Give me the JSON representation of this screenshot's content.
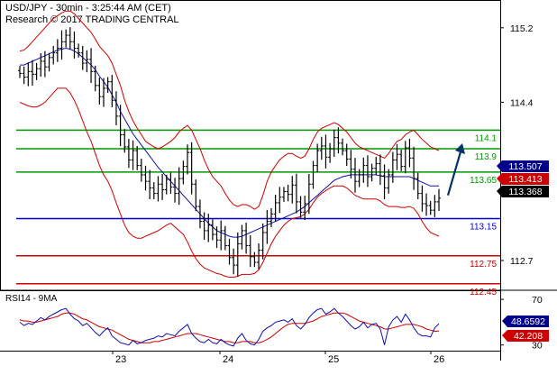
{
  "header": {
    "title": "USD/JPY - 30min - 3:25:44 AM (CET)",
    "credit": "Research © 2017 TRADING CENTRAL"
  },
  "chart_data": [
    {
      "type": "candlestick",
      "title": "USD/JPY - 30min - 3:25:44 AM (CET)",
      "ylim": [
        112.38,
        115.44
      ],
      "x_ticks": [
        "23",
        "24",
        "25",
        "26"
      ],
      "y_ticks": [
        115.2,
        114.4,
        112.7
      ],
      "grid": false,
      "price_badges": [
        {
          "label": "113.507",
          "value": 113.507,
          "color": "#00008b"
        },
        {
          "label": "113.413",
          "value": 113.413,
          "color": "#cc0000"
        },
        {
          "label": "113.368",
          "value": 113.368,
          "color": "#000000"
        }
      ],
      "levels": [
        {
          "label": "114.1",
          "value": 114.1,
          "color": "#009900"
        },
        {
          "label": "113.9",
          "value": 113.9,
          "color": "#009900"
        },
        {
          "label": "113.65",
          "value": 113.65,
          "color": "#009900"
        },
        {
          "label": "113.15",
          "value": 113.15,
          "color": "#0000cc"
        },
        {
          "label": "112.75",
          "value": 112.75,
          "color": "#cc0000"
        },
        {
          "label": "112.45",
          "value": 112.45,
          "color": "#cc0000"
        }
      ],
      "close": [
        114.71,
        114.67,
        114.73,
        114.7,
        114.76,
        114.84,
        114.78,
        114.88,
        114.93,
        114.98,
        115.05,
        115.12,
        115.05,
        114.98,
        114.93,
        114.82,
        114.86,
        114.73,
        114.58,
        114.46,
        114.55,
        114.62,
        114.42,
        114.25,
        114.05,
        113.92,
        113.78,
        113.88,
        113.72,
        113.62,
        113.55,
        113.48,
        113.42,
        113.52,
        113.46,
        113.57,
        113.49,
        113.42,
        113.58,
        113.71,
        113.86,
        113.52,
        113.28,
        113.12,
        113.02,
        113.08,
        112.98,
        112.92,
        113.02,
        112.86,
        112.73,
        112.65,
        112.88,
        113.02,
        112.86,
        112.74,
        112.68,
        112.81,
        113.0,
        113.12,
        113.2,
        113.32,
        113.38,
        113.44,
        113.41,
        113.51,
        113.33,
        113.22,
        113.31,
        113.52,
        113.72,
        113.88,
        113.93,
        113.81,
        113.9,
        114.02,
        113.96,
        113.88,
        113.79,
        113.68,
        113.55,
        113.62,
        113.72,
        113.6,
        113.69,
        113.74,
        113.61,
        113.48,
        113.62,
        113.78,
        113.84,
        113.71,
        113.91,
        113.8,
        113.58,
        113.42,
        113.31,
        113.29,
        113.24,
        113.33,
        113.37
      ],
      "bollinger_upper": [
        114.95,
        114.96,
        115.0,
        115.05,
        115.1,
        115.15,
        115.2,
        115.25,
        115.3,
        115.33,
        115.36,
        115.38,
        115.38,
        115.35,
        115.3,
        115.25,
        115.2,
        115.15,
        115.08,
        115.0,
        114.95,
        114.9,
        114.82,
        114.7,
        114.58,
        114.42,
        114.3,
        114.2,
        114.12,
        114.05,
        113.98,
        113.95,
        113.92,
        113.9,
        113.92,
        113.95,
        113.98,
        114.02,
        114.08,
        114.12,
        114.15,
        114.1,
        114.0,
        113.9,
        113.78,
        113.68,
        113.6,
        113.55,
        113.5,
        113.42,
        113.35,
        113.3,
        113.28,
        113.3,
        113.3,
        113.28,
        113.25,
        113.28,
        113.4,
        113.55,
        113.65,
        113.72,
        113.78,
        113.82,
        113.85,
        113.85,
        113.82,
        113.8,
        113.82,
        113.9,
        114.0,
        114.08,
        114.12,
        114.14,
        114.16,
        114.18,
        114.16,
        114.12,
        114.08,
        114.02,
        113.96,
        113.92,
        113.9,
        113.88,
        113.86,
        113.84,
        113.82,
        113.8,
        113.85,
        113.92,
        113.98,
        114.0,
        114.05,
        114.08,
        114.1,
        114.05,
        114.0,
        113.96,
        113.92,
        113.9,
        113.88
      ],
      "bollinger_lower": [
        114.4,
        114.38,
        114.36,
        114.35,
        114.35,
        114.37,
        114.4,
        114.45,
        114.5,
        114.55,
        114.55,
        114.55,
        114.5,
        114.42,
        114.32,
        114.2,
        114.08,
        113.98,
        113.85,
        113.72,
        113.62,
        113.55,
        113.45,
        113.32,
        113.2,
        113.08,
        113.0,
        112.96,
        112.94,
        112.94,
        112.96,
        112.98,
        113.0,
        113.02,
        113.05,
        113.08,
        113.1,
        113.06,
        113.02,
        112.98,
        112.9,
        112.8,
        112.72,
        112.66,
        112.62,
        112.6,
        112.58,
        112.56,
        112.55,
        112.53,
        112.52,
        112.52,
        112.53,
        112.55,
        112.55,
        112.55,
        112.56,
        112.6,
        112.68,
        112.78,
        112.88,
        112.96,
        113.02,
        113.08,
        113.12,
        113.15,
        113.16,
        113.17,
        113.2,
        113.25,
        113.32,
        113.38,
        113.42,
        113.45,
        113.48,
        113.5,
        113.5,
        113.5,
        113.48,
        113.44,
        113.4,
        113.38,
        113.36,
        113.36,
        113.36,
        113.36,
        113.34,
        113.3,
        113.28,
        113.28,
        113.28,
        113.27,
        113.27,
        113.28,
        113.26,
        113.2,
        113.12,
        113.05,
        113.0,
        112.98,
        112.96
      ],
      "moving_average": [
        114.8,
        114.8,
        114.82,
        114.84,
        114.86,
        114.88,
        114.9,
        114.92,
        114.94,
        114.96,
        114.97,
        114.98,
        114.97,
        114.95,
        114.92,
        114.88,
        114.84,
        114.8,
        114.75,
        114.68,
        114.62,
        114.56,
        114.48,
        114.4,
        114.3,
        114.22,
        114.14,
        114.06,
        114.0,
        113.94,
        113.88,
        113.82,
        113.76,
        113.7,
        113.65,
        113.6,
        113.55,
        113.5,
        113.45,
        113.4,
        113.35,
        113.3,
        113.25,
        113.2,
        113.15,
        113.1,
        113.06,
        113.02,
        113.0,
        112.98,
        112.96,
        112.95,
        112.95,
        112.96,
        112.98,
        113.0,
        113.02,
        113.04,
        113.06,
        113.08,
        113.1,
        113.12,
        113.14,
        113.16,
        113.18,
        113.2,
        113.22,
        113.25,
        113.28,
        113.32,
        113.36,
        113.4,
        113.44,
        113.48,
        113.52,
        113.56,
        113.58,
        113.6,
        113.61,
        113.62,
        113.62,
        113.62,
        113.62,
        113.62,
        113.62,
        113.62,
        113.61,
        113.6,
        113.6,
        113.6,
        113.6,
        113.6,
        113.6,
        113.6,
        113.58,
        113.56,
        113.54,
        113.52,
        113.5,
        113.5,
        113.5
      ]
    },
    {
      "type": "line",
      "title": "RSI14 - 9MA",
      "ylim": [
        25,
        78
      ],
      "y_ticks": [
        70,
        30
      ],
      "grid": false,
      "value_badges": [
        {
          "label": "48.6592",
          "value": 48.6592,
          "color": "#00008b"
        },
        {
          "label": "42.208",
          "value": 42.208,
          "color": "#cc0000"
        }
      ],
      "rsi": [
        50,
        47,
        49,
        48,
        51,
        54,
        52,
        55,
        57,
        59,
        61,
        62,
        57,
        53,
        51,
        47,
        49,
        45,
        41,
        38,
        42,
        45,
        38,
        35,
        32,
        31,
        30,
        34,
        31,
        32,
        34,
        35,
        36,
        38,
        37,
        40,
        39,
        38,
        42,
        45,
        48,
        40,
        36,
        33,
        32,
        35,
        32,
        31,
        35,
        32,
        30,
        29,
        36,
        40,
        34,
        31,
        30,
        35,
        42,
        45,
        47,
        50,
        51,
        52,
        50,
        53,
        47,
        44,
        48,
        54,
        58,
        61,
        62,
        57,
        59,
        62,
        58,
        55,
        51,
        47,
        44,
        46,
        50,
        45,
        48,
        49,
        44,
        30,
        46,
        52,
        55,
        50,
        57,
        52,
        45,
        40,
        38,
        38,
        37,
        45,
        48.66
      ],
      "rsi_ma": [
        52,
        51,
        51,
        50,
        50,
        51,
        52,
        53,
        54,
        55,
        57,
        58,
        58,
        57,
        55,
        53,
        52,
        50,
        48,
        46,
        45,
        44,
        43,
        41,
        39,
        37,
        35,
        34,
        33,
        32,
        32,
        32,
        33,
        33,
        34,
        35,
        36,
        37,
        38,
        39,
        40,
        40,
        40,
        39,
        38,
        37,
        36,
        35,
        34,
        33,
        33,
        32,
        32,
        33,
        33,
        33,
        32,
        32,
        33,
        35,
        37,
        40,
        43,
        46,
        48,
        49,
        49,
        49,
        49,
        50,
        51,
        53,
        55,
        56,
        57,
        58,
        58,
        58,
        57,
        55,
        53,
        51,
        50,
        49,
        48,
        47,
        46,
        44,
        44,
        45,
        46,
        47,
        48,
        48,
        48,
        47,
        46,
        44,
        43,
        42,
        42.21
      ]
    }
  ]
}
